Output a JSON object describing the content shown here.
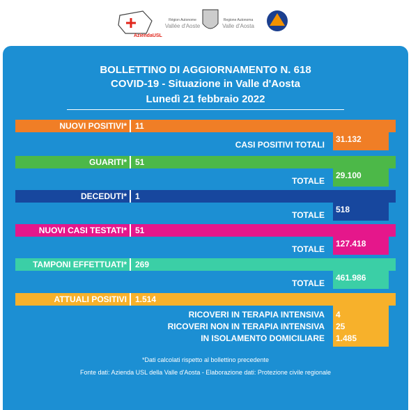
{
  "logos": {
    "usl": "AziendaUSL",
    "region_fr": "Région Autonome",
    "region_fr_name": "Vallée d'Aoste",
    "region_it": "Regione Autonoma",
    "region_it_name": "Valle d'Aosta"
  },
  "header": {
    "title": "BOLLETTINO DI AGGIORNAMENTO N. 618",
    "subtitle": "COVID-19 - Situazione in Valle d'Aosta",
    "date": "Lunedì 21 febbraio 2022"
  },
  "rows": [
    {
      "label": "NUOVI POSITIVI*",
      "value": "11",
      "total_label": "CASI POSITIVI TOTALI",
      "total": "31.132",
      "color": "#f07e26"
    },
    {
      "label": "GUARITI*",
      "value": "51",
      "total_label": "TOTALE",
      "total": "29.100",
      "color": "#4cb848"
    },
    {
      "label": "DECEDUTI*",
      "value": "1",
      "total_label": "TOTALE",
      "total": "518",
      "color": "#17479e"
    },
    {
      "label": "NUOVI CASI TESTATI*",
      "value": "51",
      "total_label": "TOTALE",
      "total": "127.418",
      "color": "#e5178b"
    },
    {
      "label": "TAMPONI EFFETTUATI*",
      "value": "269",
      "total_label": "TOTALE",
      "total": "461.986",
      "color": "#3bcfa6"
    }
  ],
  "current": {
    "label": "ATTUALI POSITIVI",
    "value": "1.514",
    "color": "#f7b12b",
    "details": [
      {
        "label": "RICOVERI IN TERAPIA INTENSIVA",
        "value": "4"
      },
      {
        "label": "RICOVERI NON IN TERAPIA INTENSIVA",
        "value": "25"
      },
      {
        "label": "IN ISOLAMENTO DOMICILIARE",
        "value": "1.485"
      }
    ]
  },
  "footnote": "*Dati calcolati rispetto al bollettino precedente",
  "source": "Fonte dati: Azienda USL della Valle d'Aosta - Elaborazione dati: Protezione civile regionale"
}
